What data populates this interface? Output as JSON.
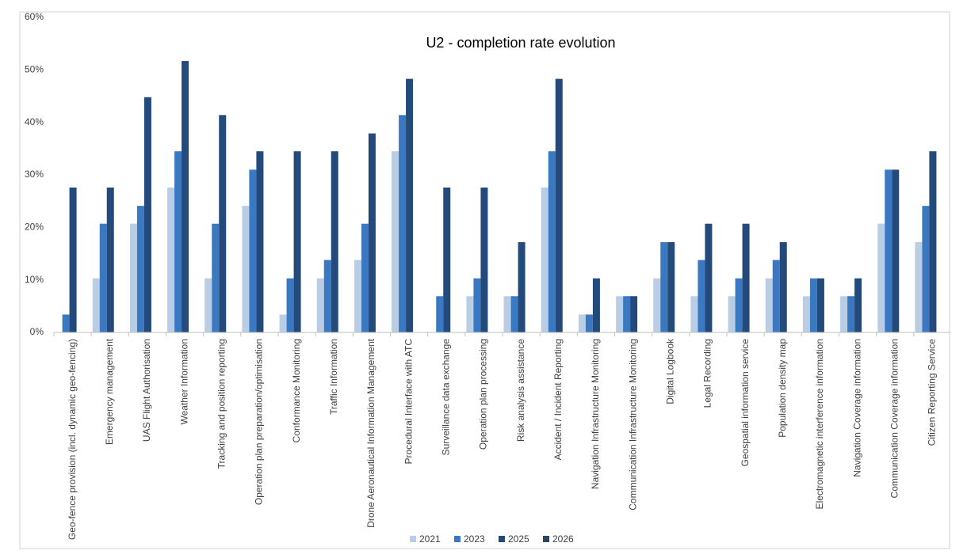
{
  "chart_data": {
    "type": "bar",
    "title": "U2 - completion rate evolution",
    "categories": [
      "Geo-fence provision (incl. dynamic geo-fencing)",
      "Emergency management",
      "UAS Flight Authorisation",
      "Weather Information",
      "Tracking and position reporting",
      "Operation plan preparation/optimisation",
      "Conformance Monitoring",
      "Traffic Information",
      "Drone Aeronautical Information Management",
      "Procedural Interface with ATC",
      "Surveillance data exchange",
      "Operation plan processing",
      "Risk analysis assistance",
      "Accident / Incident Reporting",
      "Navigation Infrastructure Monitoring",
      "Communication Infrastructure Monitoring",
      "Digital Logbook",
      "Legal Recording",
      "Geospatial information service",
      "Population density map",
      "Electromagnetic interference information",
      "Navigation Coverage information",
      "Communication Coverage information",
      "Citizen Reporting Service"
    ],
    "series": [
      {
        "name": "2021",
        "color": "#b9cde5",
        "values": [
          0,
          10.3,
          20.7,
          27.6,
          10.3,
          24.1,
          3.4,
          10.3,
          13.8,
          34.5,
          0,
          6.9,
          6.9,
          27.6,
          3.4,
          6.9,
          10.3,
          6.9,
          6.9,
          10.3,
          6.9,
          6.9,
          20.7,
          17.2
        ]
      },
      {
        "name": "2023",
        "color": "#3b78c2",
        "values": [
          3.4,
          20.7,
          24.1,
          34.5,
          20.7,
          31.0,
          10.3,
          13.8,
          20.7,
          41.4,
          6.9,
          10.3,
          6.9,
          34.5,
          3.4,
          6.9,
          17.2,
          13.8,
          10.3,
          13.8,
          10.3,
          6.9,
          31.0,
          24.1
        ]
      },
      {
        "name": "2025",
        "color": "#234a7a",
        "values": [
          27.6,
          27.6,
          44.8,
          51.7,
          41.4,
          34.5,
          34.5,
          34.5,
          37.9,
          48.3,
          27.6,
          27.6,
          17.2,
          48.3,
          10.3,
          6.9,
          17.2,
          20.7,
          20.7,
          17.2,
          10.3,
          10.3,
          31.0,
          34.5
        ]
      },
      {
        "name": "2026",
        "color": "#2e4560",
        "values": [
          0,
          0,
          0,
          0,
          0,
          0,
          0,
          0,
          0,
          0,
          0,
          0,
          0,
          0,
          0,
          0,
          0,
          0,
          0,
          0,
          0,
          0,
          0,
          0
        ]
      }
    ],
    "ylim": [
      0,
      60
    ],
    "yticks": [
      {
        "value": 0,
        "label": "0%"
      },
      {
        "value": 10,
        "label": "10%"
      },
      {
        "value": 20,
        "label": "20%"
      },
      {
        "value": 30,
        "label": "30%"
      },
      {
        "value": 40,
        "label": "40%"
      },
      {
        "value": 50,
        "label": "50%"
      },
      {
        "value": 60,
        "label": "60%"
      }
    ],
    "grid": false,
    "legend": "bottom"
  }
}
